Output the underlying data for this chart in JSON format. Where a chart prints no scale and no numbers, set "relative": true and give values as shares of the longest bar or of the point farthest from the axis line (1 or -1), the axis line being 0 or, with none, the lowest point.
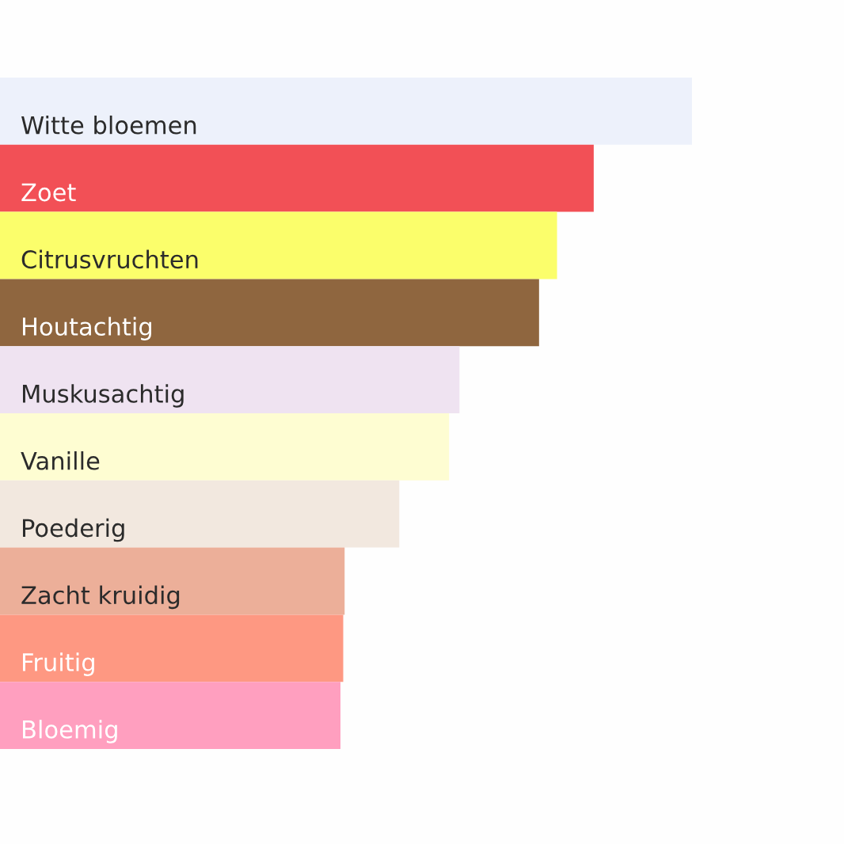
{
  "chart_data": {
    "type": "bar",
    "orientation": "horizontal",
    "relative": true,
    "tick_labels": false,
    "categories": [
      "Witte bloemen",
      "Zoet",
      "Citrusvruchten",
      "Houtachtig",
      "Muskusachtig",
      "Vanille",
      "Poederig",
      "Zacht kruidig",
      "Fruitig",
      "Bloemig"
    ],
    "values": [
      1,
      0.858,
      0.805,
      0.779,
      0.664,
      0.649,
      0.577,
      0.498,
      0.496,
      0.492
    ],
    "colors": [
      "#edf1fb",
      "#f25056",
      "#fbfe6b",
      "#8f663f",
      "#efe3f1",
      "#fefdd2",
      "#f2e8df",
      "#ecaf99",
      "#fe9882",
      "#ff9fbf"
    ]
  }
}
